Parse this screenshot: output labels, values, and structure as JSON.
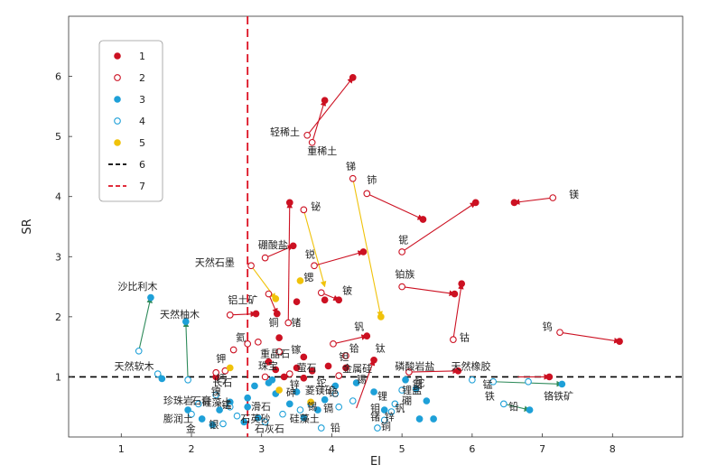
{
  "chart_data": {
    "type": "scatter",
    "title": "",
    "xlabel": "EI",
    "ylabel": "SR",
    "xlim": [
      0.25,
      9.0
    ],
    "ylim": [
      0,
      7
    ],
    "xticks": [
      1,
      2,
      3,
      4,
      5,
      6,
      7,
      8
    ],
    "yticks": [
      1,
      2,
      3,
      4,
      5,
      6
    ],
    "grid": false,
    "legend_position": "top-left",
    "legend": [
      {
        "label": "1",
        "marker": "filled-circle",
        "color": "#cc1122"
      },
      {
        "label": "2",
        "marker": "open-circle",
        "color": "#cc1122"
      },
      {
        "label": "3",
        "marker": "filled-circle",
        "color": "#1ea0d8"
      },
      {
        "label": "4",
        "marker": "open-circle",
        "color": "#1ea0d8"
      },
      {
        "label": "5",
        "marker": "filled-circle",
        "color": "#f0c20a"
      },
      {
        "label": "6",
        "marker": "black-dashed-line",
        "color": "#000000"
      },
      {
        "label": "7",
        "marker": "red-dashed-line",
        "color": "#dd1122"
      }
    ],
    "reference_lines": [
      {
        "axis": "y",
        "value": 1.0,
        "color": "#000000",
        "legend": "6"
      },
      {
        "axis": "x",
        "value": 2.8,
        "color": "#dd1122",
        "legend": "7"
      }
    ],
    "arrows": [
      {
        "label": "轻稀土",
        "from": [
          3.65,
          5.02
        ],
        "to": [
          4.3,
          5.98
        ],
        "color": "#cc1122"
      },
      {
        "label": "重稀土",
        "from": [
          3.72,
          4.9
        ],
        "to": [
          3.9,
          5.6
        ],
        "color": "#cc1122"
      },
      {
        "label": "镁",
        "from": [
          7.15,
          3.98
        ],
        "to": [
          6.6,
          3.9
        ],
        "color": "#cc1122"
      },
      {
        "label": "铌",
        "from": [
          5.0,
          3.08
        ],
        "to": [
          6.05,
          3.9
        ],
        "color": "#cc1122"
      },
      {
        "label": "铈",
        "from": [
          4.5,
          4.05
        ],
        "to": [
          5.3,
          3.62
        ],
        "color": "#cc1122"
      },
      {
        "label": "锑",
        "from": [
          4.3,
          4.3
        ],
        "to": [
          4.7,
          2.0
        ],
        "color": "#f0c20a"
      },
      {
        "label": "铋",
        "from": [
          3.6,
          3.78
        ],
        "to": [
          3.9,
          2.5
        ],
        "color": "#f0c20a"
      },
      {
        "label": "硼酸盐",
        "from": [
          3.05,
          2.98
        ],
        "to": [
          3.45,
          3.18
        ],
        "color": "#cc1122"
      },
      {
        "label": "天然石墨",
        "from": [
          2.85,
          2.85
        ],
        "to": [
          3.2,
          2.3
        ],
        "color": "#f0c20a"
      },
      {
        "label": "锐",
        "from": [
          3.75,
          2.85
        ],
        "to": [
          4.45,
          3.08
        ],
        "color": "#cc1122"
      },
      {
        "label": "铂族",
        "from": [
          5.0,
          2.5
        ],
        "to": [
          5.75,
          2.38
        ],
        "color": "#cc1122"
      },
      {
        "label": "铍",
        "from": [
          3.85,
          2.4
        ],
        "to": [
          4.1,
          2.28
        ],
        "color": "#cc1122"
      },
      {
        "label": "钴",
        "from": [
          5.73,
          1.62
        ],
        "to": [
          5.85,
          2.55
        ],
        "color": "#cc1122"
      },
      {
        "label": "钨",
        "from": [
          7.25,
          1.74
        ],
        "to": [
          8.1,
          1.59
        ],
        "color": "#cc1122"
      },
      {
        "label": "锗",
        "from": [
          3.38,
          1.9
        ],
        "to": [
          3.4,
          3.9
        ],
        "color": "#cc1122"
      },
      {
        "label": "钒",
        "from": [
          4.02,
          1.55
        ],
        "to": [
          4.5,
          1.68
        ],
        "color": "#cc1122"
      },
      {
        "label": "铝土矿",
        "from": [
          2.55,
          2.03
        ],
        "to": [
          2.92,
          2.05
        ],
        "color": "#cc1122"
      },
      {
        "label": "铜",
        "from": [
          3.1,
          2.38
        ],
        "to": [
          3.22,
          2.05
        ],
        "color": "#cc1122"
      },
      {
        "label": "钛",
        "from": [
          4.35,
          0.48
        ],
        "to": [
          4.6,
          1.28
        ],
        "color": "#cc1122"
      },
      {
        "label": "磷酸岩盐",
        "from": [
          5.1,
          1.08
        ],
        "to": [
          5.8,
          1.1
        ],
        "color": "#cc1122"
      },
      {
        "label": "天然橡胶",
        "from": [
          6.65,
          1.0
        ],
        "to": [
          7.1,
          1.0
        ],
        "color": "#cc1122"
      },
      {
        "label": "沙比利木",
        "from": [
          1.25,
          1.43
        ],
        "to": [
          1.42,
          2.32
        ],
        "color": "#2e8a5a"
      },
      {
        "label": "天然柚木",
        "from": [
          1.95,
          0.95
        ],
        "to": [
          1.92,
          1.92
        ],
        "color": "#2e8a5a"
      },
      {
        "label": "天然软木",
        "from": [
          1.52,
          1.05
        ],
        "to": [
          1.58,
          0.97
        ],
        "color": "#2e8a5a"
      },
      {
        "label": "铬铁矿",
        "from": [
          6.45,
          0.55
        ],
        "to": [
          6.82,
          0.45
        ],
        "color": "#2e8a5a"
      },
      {
        "label": "锰",
        "from": [
          6.3,
          0.92
        ],
        "to": [
          7.28,
          0.88
        ],
        "color": "#2e8a5a"
      }
    ],
    "series": [
      {
        "name": "1",
        "style": "red-filled",
        "points": [
          [
            4.3,
            5.98
          ],
          [
            3.9,
            5.6
          ],
          [
            6.6,
            3.9
          ],
          [
            6.05,
            3.9
          ],
          [
            5.3,
            3.62
          ],
          [
            3.45,
            3.18
          ],
          [
            4.45,
            3.08
          ],
          [
            5.75,
            2.38
          ],
          [
            5.85,
            2.55
          ],
          [
            4.1,
            2.28
          ],
          [
            8.1,
            1.59
          ],
          [
            3.4,
            3.9
          ],
          [
            4.5,
            1.68
          ],
          [
            2.92,
            2.05
          ],
          [
            3.22,
            2.05
          ],
          [
            4.6,
            1.28
          ],
          [
            5.8,
            1.1
          ],
          [
            7.1,
            1.0
          ],
          [
            3.5,
            2.25
          ],
          [
            3.9,
            2.28
          ],
          [
            3.25,
            1.65
          ],
          [
            3.6,
            1.33
          ],
          [
            3.1,
            1.25
          ],
          [
            3.5,
            1.15
          ],
          [
            3.72,
            1.1
          ],
          [
            3.95,
            1.18
          ],
          [
            4.2,
            1.15
          ],
          [
            2.35,
            1.0
          ],
          [
            3.32,
            1.0
          ],
          [
            3.6,
            0.98
          ],
          [
            3.2,
            1.12
          ]
        ]
      },
      {
        "name": "2",
        "style": "red-open",
        "points": [
          [
            3.65,
            5.02
          ],
          [
            3.72,
            4.9
          ],
          [
            7.15,
            3.98
          ],
          [
            5.0,
            3.08
          ],
          [
            4.5,
            4.05
          ],
          [
            4.3,
            4.3
          ],
          [
            3.6,
            3.78
          ],
          [
            3.05,
            2.98
          ],
          [
            2.85,
            2.85
          ],
          [
            3.75,
            2.85
          ],
          [
            5.0,
            2.5
          ],
          [
            3.85,
            2.4
          ],
          [
            5.73,
            1.62
          ],
          [
            7.25,
            1.74
          ],
          [
            3.38,
            1.9
          ],
          [
            4.02,
            1.55
          ],
          [
            2.55,
            2.03
          ],
          [
            3.1,
            2.38
          ],
          [
            5.1,
            1.08
          ],
          [
            2.8,
            1.55
          ],
          [
            2.95,
            1.58
          ],
          [
            3.25,
            1.42
          ],
          [
            4.2,
            1.35
          ],
          [
            2.48,
            1.1
          ],
          [
            3.05,
            1.0
          ],
          [
            3.4,
            1.05
          ],
          [
            4.1,
            1.02
          ],
          [
            2.35,
            1.07
          ],
          [
            2.6,
            1.45
          ]
        ]
      },
      {
        "name": "3",
        "style": "blue-filled",
        "points": [
          [
            1.42,
            2.32
          ],
          [
            1.92,
            1.92
          ],
          [
            1.58,
            0.97
          ],
          [
            6.82,
            0.45
          ],
          [
            7.28,
            0.88
          ],
          [
            5.05,
            0.95
          ],
          [
            5.2,
            0.8
          ],
          [
            5.35,
            0.6
          ],
          [
            5.45,
            0.3
          ],
          [
            5.25,
            0.3
          ],
          [
            4.75,
            0.45
          ],
          [
            4.6,
            0.75
          ],
          [
            4.35,
            0.9
          ],
          [
            4.05,
            0.85
          ],
          [
            3.9,
            0.62
          ],
          [
            3.8,
            0.45
          ],
          [
            3.6,
            0.32
          ],
          [
            3.5,
            0.75
          ],
          [
            3.4,
            0.55
          ],
          [
            3.2,
            0.72
          ],
          [
            3.1,
            0.9
          ],
          [
            2.9,
            0.85
          ],
          [
            2.8,
            0.65
          ],
          [
            2.8,
            0.5
          ],
          [
            2.95,
            0.32
          ],
          [
            2.55,
            0.58
          ],
          [
            2.4,
            0.45
          ],
          [
            2.15,
            0.3
          ],
          [
            2.3,
            0.2
          ],
          [
            1.95,
            0.45
          ],
          [
            3.15,
            0.95
          ],
          [
            2.75,
            0.25
          ]
        ]
      },
      {
        "name": "4",
        "style": "blue-open",
        "points": [
          [
            1.25,
            1.43
          ],
          [
            1.95,
            0.95
          ],
          [
            1.52,
            1.05
          ],
          [
            6.45,
            0.55
          ],
          [
            6.3,
            0.92
          ],
          [
            5.0,
            0.78
          ],
          [
            4.9,
            0.55
          ],
          [
            4.85,
            0.42
          ],
          [
            4.75,
            0.28
          ],
          [
            4.65,
            0.15
          ],
          [
            4.3,
            0.6
          ],
          [
            4.1,
            0.5
          ],
          [
            3.7,
            0.55
          ],
          [
            3.55,
            0.45
          ],
          [
            3.3,
            0.38
          ],
          [
            3.05,
            0.25
          ],
          [
            2.65,
            0.35
          ],
          [
            2.55,
            0.5
          ],
          [
            2.35,
            0.7
          ],
          [
            2.1,
            0.55
          ],
          [
            2.0,
            0.38
          ],
          [
            2.45,
            0.22
          ],
          [
            3.85,
            0.15
          ],
          [
            4.05,
            0.72
          ],
          [
            6.8,
            0.92
          ],
          [
            6.0,
            0.95
          ]
        ]
      },
      {
        "name": "5",
        "style": "yellow-filled",
        "points": [
          [
            4.7,
            2.0
          ],
          [
            3.55,
            2.6
          ],
          [
            3.2,
            2.3
          ],
          [
            2.55,
            1.15
          ],
          [
            3.25,
            0.78
          ],
          [
            3.7,
            0.58
          ]
        ]
      }
    ],
    "annotations": [
      {
        "text": "轻稀土",
        "x": 3.12,
        "y": 5.02
      },
      {
        "text": "重稀土",
        "x": 3.65,
        "y": 4.7
      },
      {
        "text": "锑",
        "x": 4.2,
        "y": 4.45
      },
      {
        "text": "铈",
        "x": 4.5,
        "y": 4.22
      },
      {
        "text": "镁",
        "x": 7.38,
        "y": 3.98
      },
      {
        "text": "铋",
        "x": 3.7,
        "y": 3.78
      },
      {
        "text": "铌",
        "x": 4.95,
        "y": 3.22
      },
      {
        "text": "硼酸盐",
        "x": 2.95,
        "y": 3.14
      },
      {
        "text": "锐",
        "x": 3.62,
        "y": 2.98
      },
      {
        "text": "天然石墨",
        "x": 2.05,
        "y": 2.85
      },
      {
        "text": "铂族",
        "x": 4.9,
        "y": 2.65
      },
      {
        "text": "铝土矿",
        "x": 2.52,
        "y": 2.22
      },
      {
        "text": "铍",
        "x": 4.15,
        "y": 2.38
      },
      {
        "text": "锶",
        "x": 3.6,
        "y": 2.6
      },
      {
        "text": "沙比利木",
        "x": 0.95,
        "y": 2.45
      },
      {
        "text": "天然柚木",
        "x": 1.55,
        "y": 1.98
      },
      {
        "text": "锗",
        "x": 3.42,
        "y": 1.85
      },
      {
        "text": "铜",
        "x": 3.1,
        "y": 1.85
      },
      {
        "text": "钒",
        "x": 4.32,
        "y": 1.78
      },
      {
        "text": "钴",
        "x": 5.82,
        "y": 1.6
      },
      {
        "text": "钨",
        "x": 7.0,
        "y": 1.78
      },
      {
        "text": "氦",
        "x": 2.63,
        "y": 1.6
      },
      {
        "text": "镓",
        "x": 3.42,
        "y": 1.4
      },
      {
        "text": "钽",
        "x": 4.1,
        "y": 1.28
      },
      {
        "text": "铪",
        "x": 4.25,
        "y": 1.42
      },
      {
        "text": "钛",
        "x": 4.62,
        "y": 1.42
      },
      {
        "text": "重晶石",
        "x": 2.98,
        "y": 1.33
      },
      {
        "text": "钾",
        "x": 2.35,
        "y": 1.25
      },
      {
        "text": "天然软木",
        "x": 0.9,
        "y": 1.12
      },
      {
        "text": "珠宝",
        "x": 2.95,
        "y": 1.13
      },
      {
        "text": "萤石",
        "x": 3.5,
        "y": 1.1
      },
      {
        "text": "金属硅",
        "x": 4.15,
        "y": 1.08
      },
      {
        "text": "磷酸岩盐",
        "x": 4.9,
        "y": 1.12
      },
      {
        "text": "天然橡胶",
        "x": 5.7,
        "y": 1.12
      },
      {
        "text": "钙",
        "x": 2.35,
        "y": 0.92
      },
      {
        "text": "锡",
        "x": 4.35,
        "y": 0.9
      },
      {
        "text": "锰",
        "x": 6.15,
        "y": 0.82
      },
      {
        "text": "铟",
        "x": 5.15,
        "y": 0.82
      },
      {
        "text": "锌",
        "x": 3.4,
        "y": 0.82
      },
      {
        "text": "镍",
        "x": 2.28,
        "y": 0.7
      },
      {
        "text": "长石",
        "x": 2.3,
        "y": 0.85
      },
      {
        "text": "菱镁矿",
        "x": 3.62,
        "y": 0.72
      },
      {
        "text": "铯",
        "x": 3.95,
        "y": 0.68
      },
      {
        "text": "铊",
        "x": 3.78,
        "y": 0.85
      },
      {
        "text": "砷",
        "x": 3.35,
        "y": 0.68
      },
      {
        "text": "铬铁矿",
        "x": 7.02,
        "y": 0.62
      },
      {
        "text": "铁",
        "x": 6.18,
        "y": 0.62
      },
      {
        "text": "锂",
        "x": 4.65,
        "y": 0.62
      },
      {
        "text": "锂盐",
        "x": 5.0,
        "y": 0.72
      },
      {
        "text": "珍珠岩",
        "x": 1.6,
        "y": 0.55
      },
      {
        "text": "石膏",
        "x": 2.0,
        "y": 0.55
      },
      {
        "text": "硅藻土",
        "x": 2.15,
        "y": 0.52
      },
      {
        "text": "硼",
        "x": 5.0,
        "y": 0.55
      },
      {
        "text": "镉",
        "x": 3.88,
        "y": 0.42
      },
      {
        "text": "锰",
        "x": 2.43,
        "y": 0.48
      },
      {
        "text": "滑石",
        "x": 2.85,
        "y": 0.45
      },
      {
        "text": "锡",
        "x": 3.65,
        "y": 0.45
      },
      {
        "text": "钼",
        "x": 4.55,
        "y": 0.42
      },
      {
        "text": "钒",
        "x": 4.9,
        "y": 0.42
      },
      {
        "text": "膨润土",
        "x": 1.6,
        "y": 0.25
      },
      {
        "text": "石英砂",
        "x": 2.7,
        "y": 0.25
      },
      {
        "text": "硅藻土",
        "x": 3.4,
        "y": 0.25
      },
      {
        "text": "锗",
        "x": 4.55,
        "y": 0.28
      },
      {
        "text": "金",
        "x": 1.92,
        "y": 0.08
      },
      {
        "text": "银",
        "x": 2.25,
        "y": 0.15
      },
      {
        "text": "石灰石",
        "x": 2.9,
        "y": 0.08
      },
      {
        "text": "铅",
        "x": 3.98,
        "y": 0.1
      },
      {
        "text": "铜",
        "x": 4.7,
        "y": 0.12
      },
      {
        "text": "锌",
        "x": 4.75,
        "y": 0.28
      },
      {
        "text": "铊",
        "x": 5.18,
        "y": 0.85
      },
      {
        "text": "铅",
        "x": 6.52,
        "y": 0.45
      }
    ]
  }
}
